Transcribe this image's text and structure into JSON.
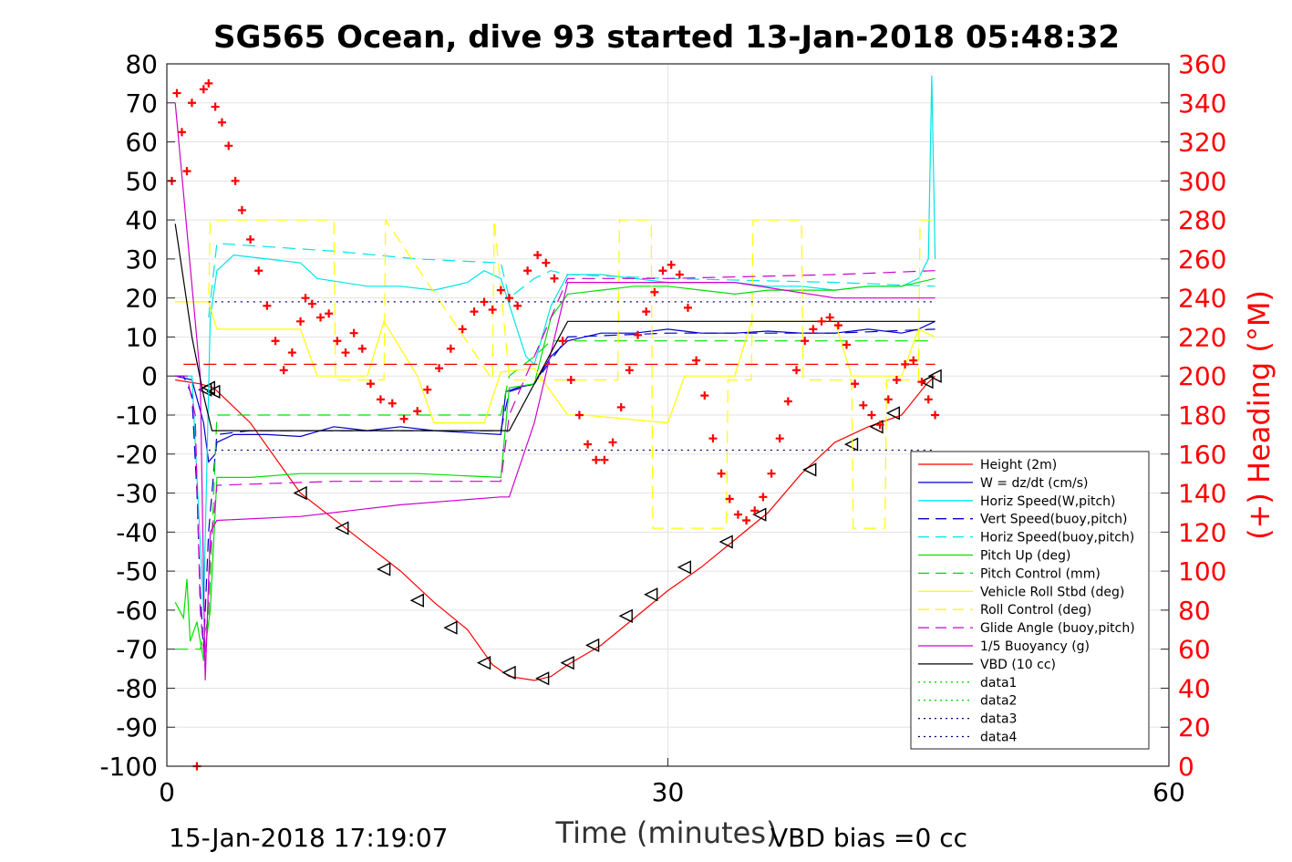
{
  "footer": {
    "timestamp": "15-Jan-2018 17:19:07",
    "vbd_bias": "VBD bias =0 cc"
  },
  "chart_data": {
    "type": "line",
    "title": "SG565 Ocean, dive 93 started 13-Jan-2018 05:48:32",
    "xlabel": "Time (minutes)",
    "ylabel_right": "(+) Heading (°M)",
    "xlim": [
      0,
      60
    ],
    "ylim": [
      -100,
      80
    ],
    "ylim_right": [
      0,
      360
    ],
    "x_ticks": [
      0,
      30,
      60
    ],
    "y_ticks": [
      80,
      70,
      60,
      50,
      40,
      30,
      20,
      10,
      0,
      -10,
      -20,
      -30,
      -40,
      -50,
      -60,
      -70,
      -80,
      -90,
      -100
    ],
    "y_ticks_right": [
      360,
      340,
      320,
      300,
      280,
      260,
      240,
      220,
      200,
      180,
      160,
      140,
      120,
      100,
      80,
      60,
      40,
      20,
      0
    ],
    "grid": true,
    "legend_position": "lower-right",
    "colors": {
      "red": "#ff0000",
      "blue": "#0000cc",
      "cyan": "#00e5e5",
      "green": "#00e000",
      "yellow": "#ffff00",
      "magenta": "#d000d0",
      "black": "#000000",
      "navy": "#000080"
    },
    "legend": [
      {
        "name": "Height (2m)",
        "color": "#ff0000",
        "dash": "solid"
      },
      {
        "name": "W = dz/dt (cm/s)",
        "color": "#0000cc",
        "dash": "solid"
      },
      {
        "name": "Horiz Speed(W,pitch)",
        "color": "#00e5e5",
        "dash": "solid"
      },
      {
        "name": "Vert Speed(buoy,pitch)",
        "color": "#0000cc",
        "dash": "dashed"
      },
      {
        "name": "Horiz Speed(buoy,pitch)",
        "color": "#00e5e5",
        "dash": "dashed"
      },
      {
        "name": "Pitch Up (deg)",
        "color": "#00e000",
        "dash": "solid"
      },
      {
        "name": "Pitch Control (mm)",
        "color": "#00e000",
        "dash": "dashed"
      },
      {
        "name": "Vehicle Roll Stbd (deg)",
        "color": "#ffff00",
        "dash": "solid"
      },
      {
        "name": "Roll Control (deg)",
        "color": "#ffff00",
        "dash": "dashed"
      },
      {
        "name": "Glide Angle (buoy,pitch)",
        "color": "#d000d0",
        "dash": "dashed"
      },
      {
        "name": "1/5 Buoyancy (g)",
        "color": "#d000d0",
        "dash": "solid"
      },
      {
        "name": "VBD (10 cc)",
        "color": "#000000",
        "dash": "solid"
      },
      {
        "name": "data1",
        "color": "#00e000",
        "dash": "dotted"
      },
      {
        "name": "data2",
        "color": "#00e000",
        "dash": "dotted"
      },
      {
        "name": "data3",
        "color": "#000080",
        "dash": "dotted"
      },
      {
        "name": "data4",
        "color": "#000080",
        "dash": "dotted"
      }
    ],
    "series": [
      {
        "key": "height",
        "color": "#ff0000",
        "dash": "solid",
        "x": [
          0.5,
          2,
          2.8,
          5,
          8,
          11,
          14,
          16,
          18,
          19.5,
          20.5,
          22,
          23,
          24,
          26,
          28,
          30,
          32,
          34,
          36,
          38,
          40,
          42,
          44,
          45.5,
          46
        ],
        "y": [
          -1,
          -2,
          -3,
          -12,
          -30,
          -40,
          -50,
          -58,
          -65,
          -74,
          -77,
          -78,
          -77,
          -74,
          -69,
          -62,
          -55,
          -49,
          -42,
          -35,
          -25,
          -17,
          -13,
          -10,
          -2,
          0
        ]
      },
      {
        "key": "height_markers",
        "color": "#000000",
        "dash": "none",
        "marker": "triangle",
        "x": [
          2.3,
          2.5,
          2.8,
          8,
          10.5,
          13,
          15,
          17,
          19,
          20.5,
          22.5,
          24,
          25.5,
          27.5,
          29,
          31,
          33.5,
          35.5,
          38.5,
          41,
          42.5,
          43.5,
          45.5,
          46
        ],
        "y": [
          -3.5,
          -3,
          -4,
          -30,
          -39,
          -49.5,
          -57.5,
          -64.5,
          -73.5,
          -76,
          -77.5,
          -73.5,
          -69,
          -61.5,
          -56,
          -49,
          -42.5,
          -35.5,
          -24,
          -17.5,
          -13,
          -9.5,
          -1.5,
          0
        ]
      },
      {
        "key": "w",
        "color": "#0000cc",
        "dash": "solid",
        "x": [
          0.5,
          1.5,
          2.2,
          2.5,
          2.9,
          3,
          4,
          6,
          8,
          10,
          12,
          14,
          16,
          18,
          20,
          20.3,
          21,
          22,
          23,
          24,
          26,
          28,
          30,
          32,
          34,
          36,
          38,
          40,
          42,
          44,
          45,
          46
        ],
        "y": [
          0,
          -1,
          -12,
          -22,
          -20,
          -17,
          -15,
          -15,
          -15.5,
          -13,
          -14,
          -13,
          -14,
          -14.5,
          -15,
          -4,
          -3,
          -2,
          5,
          9,
          11,
          11,
          12,
          11,
          11,
          11.5,
          11,
          11,
          12,
          11,
          12,
          14
        ]
      },
      {
        "key": "horiz_speed_w",
        "color": "#00e5e5",
        "dash": "solid",
        "x": [
          0.5,
          1.5,
          2.2,
          2.6,
          3,
          4,
          6,
          8,
          9,
          12,
          14,
          16,
          18,
          19,
          20,
          21.5,
          22,
          23,
          24,
          26,
          28,
          30,
          32,
          34,
          36,
          38,
          40,
          42,
          44,
          45,
          45.6,
          45.8,
          46
        ],
        "y": [
          0,
          0,
          -60,
          15,
          27,
          31,
          30,
          29,
          25,
          23,
          23,
          22,
          24,
          27,
          25,
          5,
          3,
          18,
          26,
          26,
          25,
          24,
          24,
          24,
          23,
          23,
          22,
          23,
          23,
          25,
          30,
          77,
          30
        ]
      },
      {
        "key": "vert_speed_buoy",
        "color": "#0000cc",
        "dash": "dashed",
        "x": [
          0.5,
          1,
          1.5,
          1.8,
          2,
          2.2,
          2.5,
          3,
          5,
          10,
          15,
          20,
          20.5,
          22,
          24,
          30,
          40,
          46
        ],
        "y": [
          0,
          0,
          -5,
          -30,
          -55,
          -70,
          -40,
          -15,
          -14,
          -14,
          -14,
          -14,
          -4,
          -2,
          10,
          11,
          11,
          12
        ]
      },
      {
        "key": "horiz_speed_buoy",
        "color": "#00e5e5",
        "dash": "dashed",
        "x": [
          2.5,
          3,
          10,
          15,
          20,
          20.5,
          22,
          23,
          24,
          30,
          40,
          46
        ],
        "y": [
          15,
          34,
          32,
          30,
          29,
          20,
          25,
          27,
          26,
          25,
          24,
          23
        ]
      },
      {
        "key": "pitch_up",
        "color": "#00e000",
        "dash": "solid",
        "x": [
          0.5,
          1,
          1.2,
          1.4,
          1.8,
          2.2,
          2.6,
          3,
          5,
          8,
          10,
          15,
          20,
          20.5,
          22,
          23,
          24,
          26,
          28,
          30,
          32,
          34,
          36,
          38,
          40,
          42,
          44,
          45,
          46
        ],
        "y": [
          -58,
          -62,
          -52,
          -68,
          -63,
          -73,
          -60,
          -26,
          -26,
          -25,
          -25,
          -25,
          -26,
          -3,
          -2,
          15,
          21,
          22,
          23,
          23,
          22,
          21,
          22,
          22,
          22,
          23,
          23,
          24,
          25
        ]
      },
      {
        "key": "pitch_control",
        "color": "#00e000",
        "dash": "dashed",
        "x": [
          0.5,
          2,
          2.5,
          3,
          20,
          20.5,
          22,
          23,
          46
        ],
        "y": [
          -70,
          -70,
          -62,
          -10,
          -10,
          0,
          5,
          9,
          9
        ]
      },
      {
        "key": "vehicle_roll",
        "color": "#ffff00",
        "dash": "solid",
        "x": [
          0.5,
          2.5,
          3,
          8,
          9,
          12,
          13,
          15,
          16,
          19,
          20,
          22,
          24,
          25,
          30,
          31,
          34,
          35,
          40,
          41,
          44,
          45,
          46
        ],
        "y": [
          19,
          19,
          12,
          12,
          0,
          0,
          14,
          0,
          -12,
          -12,
          1,
          2,
          -10,
          -10,
          -12,
          0,
          0,
          14,
          14,
          0,
          0,
          12,
          10
        ]
      },
      {
        "key": "roll_control",
        "color": "#ffff00",
        "dash": "dashed",
        "x": [
          0.5,
          2.5,
          2.6,
          10,
          10.1,
          13,
          13.1,
          19.5,
          19.6,
          20.5,
          20.6,
          27,
          27.1,
          29,
          29.1,
          33.5,
          33.6,
          35,
          35.1,
          38,
          38.1,
          41,
          41.1,
          43,
          43.1,
          45,
          45.1,
          46
        ],
        "y": [
          19,
          19,
          40,
          40,
          -1,
          -1,
          40,
          -1,
          40,
          0,
          -1,
          -1,
          40,
          40,
          -39,
          -39,
          -1,
          -1,
          40,
          40,
          -1,
          -1,
          -39,
          -39,
          -1,
          -1,
          40,
          40
        ]
      },
      {
        "key": "glide_angle",
        "color": "#d000d0",
        "dash": "dashed",
        "x": [
          0.5,
          1.2,
          1.7,
          2,
          2.3,
          2.6,
          3,
          10,
          20,
          20.5,
          22,
          24,
          30,
          40,
          46
        ],
        "y": [
          0,
          0,
          -10,
          -60,
          -75,
          -45,
          -28,
          -27,
          -27,
          -10,
          5,
          25,
          25,
          26,
          27
        ]
      },
      {
        "key": "buoyancy",
        "color": "#d000d0",
        "dash": "solid",
        "x": [
          0.5,
          2,
          2.3,
          2.6,
          3,
          8,
          14,
          20,
          20.5,
          22,
          24,
          34,
          37,
          40,
          46
        ],
        "y": [
          70,
          0,
          -78,
          -40,
          -37,
          -36,
          -33,
          -31,
          -31,
          -12,
          24,
          24,
          22,
          20,
          20
        ]
      },
      {
        "key": "vbd",
        "color": "#000000",
        "dash": "solid",
        "x": [
          0.5,
          1.5,
          2.2,
          2.7,
          20.5,
          24,
          46
        ],
        "y": [
          39,
          10,
          -5,
          -14,
          -14,
          14,
          14
        ]
      },
      {
        "key": "data3",
        "color": "#000080",
        "dash": "dotted",
        "x": [
          2.5,
          46
        ],
        "y": [
          19,
          19
        ]
      },
      {
        "key": "data4",
        "color": "#000080",
        "dash": "dotted",
        "x": [
          2.5,
          46
        ],
        "y": [
          -19,
          -19
        ]
      },
      {
        "key": "red_ref",
        "color": "#ff0000",
        "dash": "dashed",
        "x": [
          1,
          46
        ],
        "y": [
          3,
          3
        ]
      }
    ],
    "heading": {
      "color": "#ff0000",
      "marker": "plus",
      "x": [
        0.3,
        0.6,
        0.9,
        1.2,
        1.5,
        1.8,
        2.2,
        2.5,
        2.9,
        3.3,
        3.7,
        4.1,
        4.5,
        5,
        5.5,
        6,
        6.5,
        7,
        7.5,
        8,
        8.3,
        8.7,
        9.2,
        9.7,
        10.2,
        10.7,
        11.2,
        11.7,
        12.2,
        12.8,
        13.5,
        14.2,
        15,
        15.6,
        16.3,
        17,
        17.7,
        18.4,
        19,
        19.5,
        20,
        20.5,
        21,
        21.6,
        22.2,
        22.7,
        23.2,
        23.7,
        24.2,
        24.7,
        25.2,
        25.7,
        26.2,
        26.7,
        27.2,
        27.7,
        28.2,
        28.7,
        29.2,
        29.7,
        30.2,
        30.7,
        31.2,
        31.7,
        32.2,
        32.7,
        33.2,
        33.7,
        34.2,
        34.7,
        35.2,
        35.7,
        36.2,
        36.7,
        37.2,
        37.7,
        38.2,
        38.7,
        39.2,
        39.7,
        40.2,
        40.7,
        41.2,
        41.7,
        42.2,
        42.7,
        43.2,
        43.7,
        44.2,
        44.7,
        45.2,
        45.6,
        46
      ],
      "y": [
        300,
        345,
        325,
        305,
        340,
        0,
        347,
        350,
        338,
        330,
        318,
        300,
        285,
        270,
        254,
        236,
        218,
        203,
        212,
        228,
        240,
        237,
        230,
        232,
        218,
        212,
        222,
        214,
        196,
        188,
        186,
        178,
        182,
        193,
        204,
        214,
        224,
        233,
        238,
        234,
        244,
        240,
        236,
        254,
        262,
        258,
        250,
        218,
        198,
        180,
        165,
        157,
        157,
        166,
        184,
        203,
        221,
        233,
        243,
        254,
        257,
        252,
        235,
        208,
        190,
        168,
        150,
        137,
        129,
        126,
        131,
        138,
        150,
        168,
        187,
        203,
        218,
        224,
        228,
        230,
        226,
        216,
        196,
        185,
        180,
        175,
        188,
        198,
        206,
        208,
        197,
        188,
        180
      ]
    }
  }
}
